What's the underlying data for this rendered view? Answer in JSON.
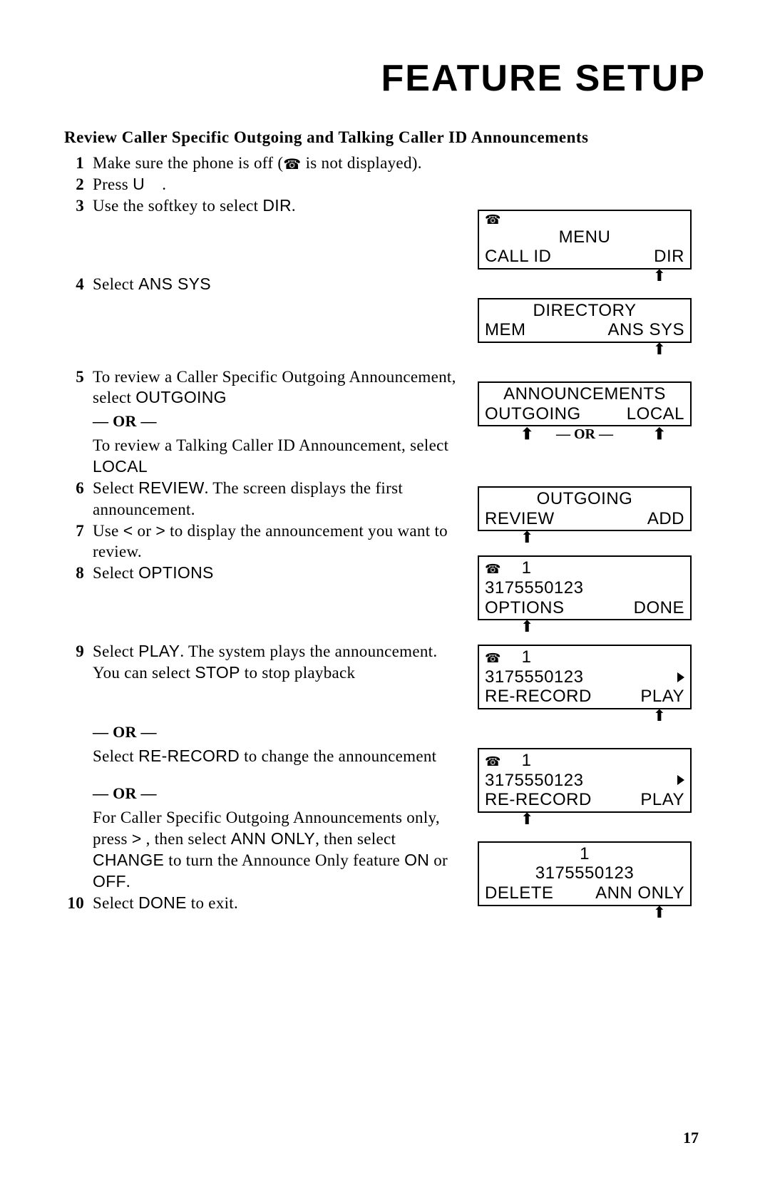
{
  "title": "FEATURE SETUP",
  "heading": "Review Caller Specific Outgoing and Talking Caller ID Announcements",
  "page_number": "17",
  "or_label": "— OR —",
  "steps": {
    "s1": {
      "num": "1",
      "a": "Make sure the phone is off (",
      "b": " is not displayed)."
    },
    "s2": {
      "num": "2",
      "a": "Press ",
      "b": "U",
      "c": "."
    },
    "s3": {
      "num": "3",
      "a": "Use the softkey to select ",
      "b": "DIR",
      "c": "."
    },
    "s4": {
      "num": "4",
      "a": "Select ",
      "b": "ANS SYS"
    },
    "s5": {
      "num": "5",
      "a": "To review a Caller Specific Outgoing Announcement, select ",
      "b": "OUTGOING",
      "c": "To review a Talking Caller ID Announcement, select ",
      "d": "LOCAL"
    },
    "s6": {
      "num": "6",
      "a": "Select ",
      "b": "REVIEW",
      "c": ". The screen displays the first announcement."
    },
    "s7": {
      "num": "7",
      "a": "Use ",
      "b": "<",
      "c": " or ",
      "d": ">",
      "e": " to display the announcement you want to review."
    },
    "s8": {
      "num": "8",
      "a": "Select ",
      "b": "OPTIONS"
    },
    "s9": {
      "num": "9",
      "a": "Select ",
      "b": "PLAY",
      "c": ". The system plays the announcement. You can select ",
      "d": "STOP",
      "e": " to stop playback",
      "f": "Select ",
      "g": "RE-RECORD",
      "h": " to change the announcement",
      "i": "For Caller Specific Outgoing Announcements only, press ",
      "j": ">",
      "k": " , then select ",
      "l": "ANN ONLY",
      "m": ", then select ",
      "n": "CHANGE",
      "o": " to turn the Announce Only feature ",
      "p": "ON",
      "q": " or ",
      "r": "OFF",
      "s": "."
    },
    "s10": {
      "num": "10",
      "a": "Select ",
      "b": "DONE",
      "c": " to exit."
    }
  },
  "screens": {
    "sc1": {
      "menu": "MENU",
      "left": "CALL ID",
      "right": "DIR"
    },
    "sc2": {
      "title": "DIRECTORY",
      "left": "MEM",
      "right": "ANS SYS"
    },
    "sc3": {
      "title": "ANNOUNCEMENTS",
      "left": "OUTGOING",
      "right": "LOCAL"
    },
    "sc4": {
      "title": "OUTGOING",
      "left": "REVIEW",
      "right": "ADD"
    },
    "sc5": {
      "num": "1",
      "phone_num": "3175550123",
      "left": "OPTIONS",
      "right": "DONE"
    },
    "sc6": {
      "num": "1",
      "phone_num": "3175550123",
      "left": "RE-RECORD",
      "right": "PLAY"
    },
    "sc7": {
      "num": "1",
      "phone_num": "3175550123",
      "left": "RE-RECORD",
      "right": "PLAY"
    },
    "sc8": {
      "num": "1",
      "phone_num": "3175550123",
      "left": "DELETE",
      "right": "ANN ONLY"
    }
  }
}
